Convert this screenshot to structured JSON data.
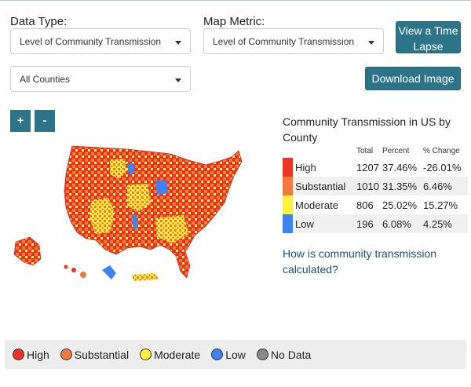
{
  "filters": {
    "data_type_label": "Data Type:",
    "data_type_value": "Level of Community Transmission",
    "map_metric_label": "Map Metric:",
    "map_metric_value": "Level of Community Transmission",
    "county_value": "All Counties"
  },
  "buttons": {
    "time_lapse": "View a Time Lapse",
    "download": "Download Image",
    "zoom_in": "+",
    "zoom_out": "-"
  },
  "summary": {
    "title": "Community Transmission in US by County",
    "headers": [
      "Total",
      "Percent",
      "% Change"
    ],
    "rows": [
      {
        "level": "High",
        "total": "1207",
        "percent": "37.46%",
        "change": "-26.01%",
        "color": "#ee3327"
      },
      {
        "level": "Substantial",
        "total": "1010",
        "percent": "31.35%",
        "change": "6.46%",
        "color": "#f07a3e"
      },
      {
        "level": "Moderate",
        "total": "806",
        "percent": "25.02%",
        "change": "15.27%",
        "color": "#fff23a"
      },
      {
        "level": "Low",
        "total": "196",
        "percent": "6.08%",
        "change": "4.25%",
        "color": "#3b84f0"
      }
    ],
    "link": "How is community transmission calculated?"
  },
  "legend": [
    {
      "label": "High",
      "color": "#ee3327"
    },
    {
      "label": "Substantial",
      "color": "#f07a3e"
    },
    {
      "label": "Moderate",
      "color": "#fff23a"
    },
    {
      "label": "Low",
      "color": "#3b84f0"
    },
    {
      "label": "No Data",
      "color": "#888888"
    }
  ]
}
